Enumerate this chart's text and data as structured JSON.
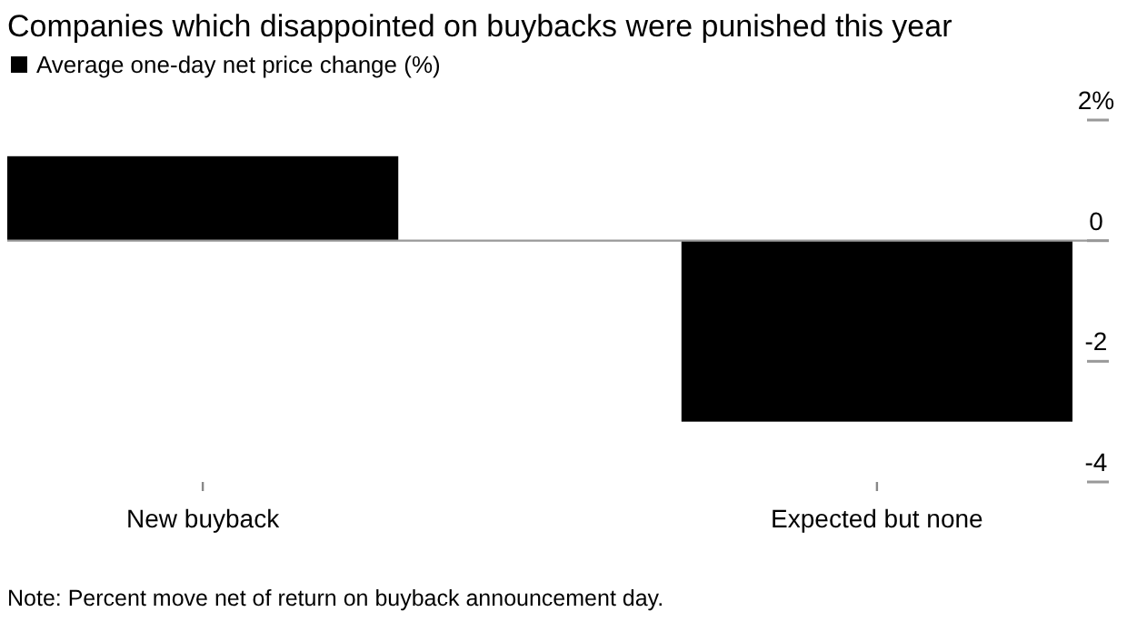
{
  "chart_data": {
    "type": "bar",
    "title": "Companies which disappointed on buybacks were punished this year",
    "categories": [
      "New buyback",
      "Expected but none"
    ],
    "series": [
      {
        "name": "Average one-day net price change (%)",
        "color": "#000000",
        "values": [
          1.4,
          -3.0
        ]
      }
    ],
    "ylim": [
      -4,
      2
    ],
    "yticks": [
      {
        "value": 2,
        "label": "2%"
      },
      0,
      -2,
      -4
    ],
    "legend": "top left",
    "ref_lines": [
      {
        "axis": "y",
        "value": 0,
        "color": "#999999"
      }
    ],
    "annotations": [
      "Note: Percent move net of return on buyback announcement day."
    ]
  }
}
